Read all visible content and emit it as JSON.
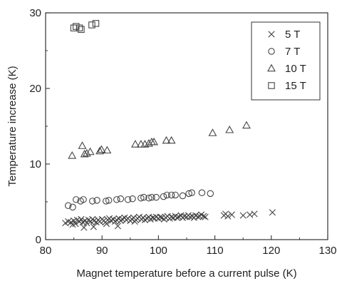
{
  "chart_data": {
    "type": "scatter",
    "xlabel": "Magnet temperature before a current pulse (K)",
    "ylabel": "Temperature increase (K)",
    "xlim": [
      80,
      130
    ],
    "ylim": [
      0,
      30
    ],
    "x_ticks": [
      80,
      90,
      100,
      110,
      120,
      130
    ],
    "y_ticks": [
      0,
      10,
      20,
      30
    ],
    "legend_position": "top-right",
    "series": [
      {
        "name": "5 T",
        "marker": "x",
        "points": [
          [
            83.5,
            2.2
          ],
          [
            84.0,
            2.4
          ],
          [
            84.5,
            2.3
          ],
          [
            85.0,
            2.5
          ],
          [
            85.3,
            2.1
          ],
          [
            85.6,
            2.6
          ],
          [
            86.0,
            2.4
          ],
          [
            86.3,
            2.7
          ],
          [
            86.6,
            2.3
          ],
          [
            87.0,
            2.5
          ],
          [
            87.3,
            2.2
          ],
          [
            87.6,
            2.6
          ],
          [
            88.0,
            2.4
          ],
          [
            88.3,
            2.7
          ],
          [
            88.6,
            2.5
          ],
          [
            89.0,
            2.3
          ],
          [
            89.3,
            2.6
          ],
          [
            89.6,
            2.4
          ],
          [
            90.0,
            2.7
          ],
          [
            90.3,
            2.5
          ],
          [
            90.6,
            2.3
          ],
          [
            91.0,
            2.6
          ],
          [
            91.3,
            2.8
          ],
          [
            91.6,
            2.5
          ],
          [
            92.0,
            2.7
          ],
          [
            92.3,
            2.4
          ],
          [
            92.6,
            2.6
          ],
          [
            93.0,
            2.8
          ],
          [
            93.3,
            2.5
          ],
          [
            93.6,
            2.7
          ],
          [
            94.0,
            2.9
          ],
          [
            94.3,
            2.6
          ],
          [
            94.6,
            2.8
          ],
          [
            95.0,
            2.5
          ],
          [
            95.3,
            2.7
          ],
          [
            95.6,
            2.9
          ],
          [
            96.0,
            2.6
          ],
          [
            96.3,
            2.8
          ],
          [
            96.6,
            3.0
          ],
          [
            97.0,
            2.7
          ],
          [
            97.3,
            2.9
          ],
          [
            97.6,
            2.6
          ],
          [
            98.0,
            2.8
          ],
          [
            98.3,
            3.0
          ],
          [
            98.6,
            2.7
          ],
          [
            99.0,
            2.9
          ],
          [
            99.3,
            2.8
          ],
          [
            99.6,
            3.0
          ],
          [
            100.0,
            2.8
          ],
          [
            100.3,
            3.0
          ],
          [
            100.6,
            2.9
          ],
          [
            101.0,
            2.7
          ],
          [
            101.3,
            2.9
          ],
          [
            101.6,
            3.1
          ],
          [
            102.0,
            2.8
          ],
          [
            102.3,
            3.0
          ],
          [
            102.6,
            2.9
          ],
          [
            103.0,
            3.1
          ],
          [
            103.3,
            2.9
          ],
          [
            103.6,
            3.0
          ],
          [
            104.0,
            3.2
          ],
          [
            104.3,
            2.9
          ],
          [
            104.6,
            3.1
          ],
          [
            105.0,
            3.0
          ],
          [
            105.3,
            3.2
          ],
          [
            105.6,
            3.0
          ],
          [
            106.0,
            3.1
          ],
          [
            106.3,
            2.9
          ],
          [
            106.6,
            3.2
          ],
          [
            107.0,
            3.0
          ],
          [
            107.3,
            3.1
          ],
          [
            107.6,
            3.3
          ],
          [
            108.0,
            3.1
          ],
          [
            108.3,
            3.0
          ],
          [
            111.6,
            3.2
          ],
          [
            111.9,
            3.4
          ],
          [
            112.3,
            3.1
          ],
          [
            113.0,
            3.3
          ],
          [
            115.0,
            3.2
          ],
          [
            116.2,
            3.3
          ],
          [
            117.0,
            3.4
          ],
          [
            120.2,
            3.6
          ],
          [
            86.8,
            1.6
          ],
          [
            88.5,
            1.7
          ],
          [
            92.8,
            1.8
          ],
          [
            84.8,
            2.0
          ],
          [
            90.8,
            2.1
          ],
          [
            95.8,
            2.4
          ]
        ]
      },
      {
        "name": "7 T",
        "marker": "circle",
        "points": [
          [
            84.0,
            4.5
          ],
          [
            84.8,
            4.3
          ],
          [
            85.4,
            5.3
          ],
          [
            86.2,
            5.1
          ],
          [
            86.7,
            5.3
          ],
          [
            88.3,
            5.1
          ],
          [
            89.1,
            5.2
          ],
          [
            90.7,
            5.1
          ],
          [
            91.2,
            5.2
          ],
          [
            92.6,
            5.3
          ],
          [
            93.3,
            5.4
          ],
          [
            94.6,
            5.3
          ],
          [
            95.4,
            5.4
          ],
          [
            96.9,
            5.5
          ],
          [
            97.4,
            5.6
          ],
          [
            98.3,
            5.5
          ],
          [
            98.8,
            5.6
          ],
          [
            99.6,
            5.6
          ],
          [
            100.9,
            5.7
          ],
          [
            101.5,
            5.9
          ],
          [
            102.3,
            5.9
          ],
          [
            103.0,
            5.9
          ],
          [
            104.3,
            5.8
          ],
          [
            105.4,
            6.1
          ],
          [
            105.9,
            6.2
          ],
          [
            107.7,
            6.2
          ],
          [
            109.2,
            6.1
          ]
        ]
      },
      {
        "name": "10 T",
        "marker": "triangle",
        "points": [
          [
            84.7,
            11.1
          ],
          [
            86.5,
            12.4
          ],
          [
            86.9,
            11.3
          ],
          [
            87.3,
            11.4
          ],
          [
            87.9,
            11.6
          ],
          [
            89.6,
            11.7
          ],
          [
            89.9,
            11.9
          ],
          [
            90.9,
            11.8
          ],
          [
            95.9,
            12.6
          ],
          [
            96.9,
            12.6
          ],
          [
            97.6,
            12.6
          ],
          [
            98.3,
            12.7
          ],
          [
            98.8,
            12.9
          ],
          [
            99.2,
            12.9
          ],
          [
            101.4,
            13.1
          ],
          [
            102.3,
            13.1
          ],
          [
            109.6,
            14.1
          ],
          [
            112.6,
            14.5
          ],
          [
            115.6,
            15.1
          ]
        ]
      },
      {
        "name": "15 T",
        "marker": "square",
        "points": [
          [
            85.0,
            28.0
          ],
          [
            85.4,
            28.2
          ],
          [
            86.0,
            28.0
          ],
          [
            86.3,
            27.8
          ],
          [
            88.2,
            28.4
          ],
          [
            88.9,
            28.6
          ]
        ]
      }
    ]
  }
}
